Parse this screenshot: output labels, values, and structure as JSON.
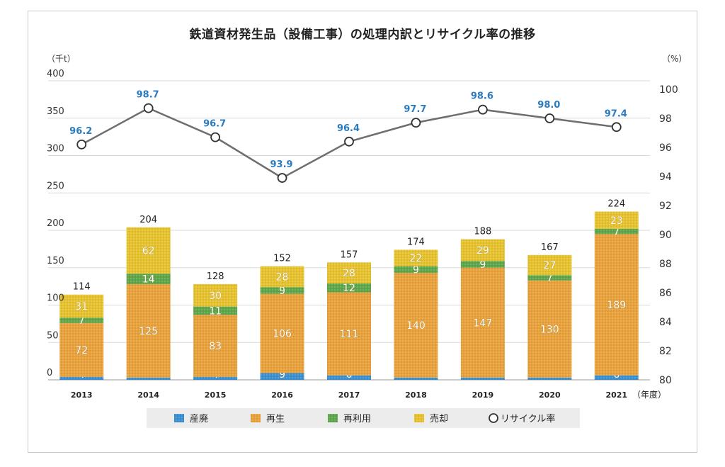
{
  "chart_data": {
    "type": "bar",
    "title": "鉄道資材発生品（設備工事）の処理内訳とリサイクル率の推移",
    "left_axis": {
      "unit": "（千t）",
      "min": 0,
      "max": 400,
      "ticks": [
        0,
        50,
        100,
        150,
        200,
        250,
        300,
        350,
        400
      ]
    },
    "right_axis": {
      "unit": "（%）",
      "min": 80,
      "max": 100,
      "ticks": [
        80,
        82,
        84,
        86,
        88,
        90,
        92,
        94,
        96,
        98,
        100
      ]
    },
    "x_unit": "（年度）",
    "categories": [
      "2013",
      "2014",
      "2015",
      "2016",
      "2017",
      "2018",
      "2019",
      "2020",
      "2021"
    ],
    "series": [
      {
        "name": "産廃",
        "kind": "stacked-bar",
        "color": "#3a8fcf",
        "values": [
          4,
          3,
          4,
          9,
          6,
          3,
          3,
          3,
          6
        ]
      },
      {
        "name": "再生",
        "kind": "stacked-bar",
        "color": "#e8a13b",
        "values": [
          72,
          125,
          83,
          106,
          111,
          140,
          147,
          130,
          189
        ]
      },
      {
        "name": "再利用",
        "kind": "stacked-bar",
        "color": "#5ea64b",
        "values": [
          7,
          14,
          11,
          9,
          12,
          9,
          9,
          7,
          7
        ]
      },
      {
        "name": "売却",
        "kind": "stacked-bar",
        "color": "#e6c22e",
        "values": [
          31,
          62,
          30,
          28,
          28,
          22,
          29,
          27,
          23
        ]
      },
      {
        "name": "リサイクル率",
        "kind": "line",
        "axis": "right",
        "color": "#6e6e6e",
        "values": [
          96.2,
          98.7,
          96.7,
          93.9,
          96.4,
          97.7,
          98.6,
          98.0,
          97.4
        ],
        "labels": [
          "96.2",
          "98.7",
          "96.7",
          "93.9",
          "96.4",
          "97.7",
          "98.6",
          "98.0",
          "97.4"
        ]
      }
    ],
    "totals": [
      114,
      204,
      128,
      152,
      157,
      174,
      188,
      167,
      224
    ],
    "label_color": "#2b7bbf",
    "legend_position": "bottom",
    "grid": "horizontal"
  }
}
